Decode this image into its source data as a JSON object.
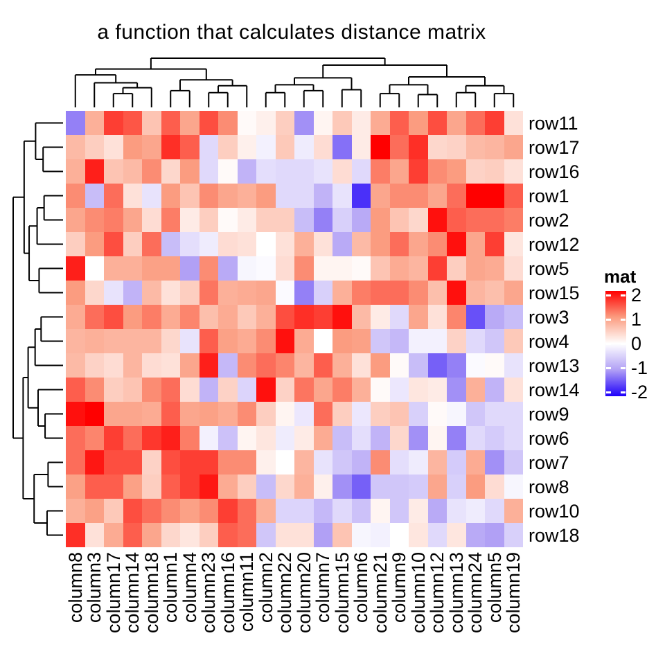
{
  "title": "a function that calculates distance matrix",
  "chart_data": {
    "type": "heatmap",
    "title": "a function that calculates distance matrix",
    "rows": [
      "row11",
      "row17",
      "row16",
      "row1",
      "row2",
      "row12",
      "row5",
      "row15",
      "row3",
      "row4",
      "row13",
      "row14",
      "row9",
      "row6",
      "row7",
      "row8",
      "row10",
      "row18"
    ],
    "columns": [
      "column8",
      "column3",
      "column17",
      "column14",
      "column18",
      "column1",
      "column4",
      "column23",
      "column16",
      "column11",
      "column2",
      "column22",
      "column20",
      "column7",
      "column15",
      "column6",
      "column21",
      "column9",
      "column10",
      "column12",
      "column13",
      "column24",
      "column5",
      "column19"
    ],
    "values": [
      [
        -1.2,
        0.8,
        1.6,
        1.45,
        0.6,
        1.4,
        0.9,
        1.5,
        1.1,
        0.05,
        0.15,
        0.5,
        -1.1,
        0.1,
        0.55,
        0.2,
        0.85,
        1.4,
        1.0,
        1.5,
        0.9,
        1.3,
        1.6,
        0.3
      ],
      [
        0.7,
        0.5,
        0.3,
        1.0,
        0.9,
        1.7,
        1.4,
        -0.4,
        0.5,
        0.15,
        -0.15,
        0.55,
        -0.2,
        0.35,
        -1.3,
        0.2,
        2.0,
        1.3,
        1.7,
        0.4,
        0.45,
        0.7,
        0.75,
        0.9
      ],
      [
        0.8,
        1.8,
        0.6,
        0.7,
        1.1,
        0.4,
        1.0,
        -0.4,
        0.05,
        -0.8,
        -0.35,
        -0.4,
        -0.4,
        -0.3,
        0.35,
        -0.4,
        1.2,
        0.9,
        1.6,
        1.1,
        1.0,
        0.45,
        0.5,
        0.3
      ],
      [
        1.1,
        -0.7,
        1.3,
        0.3,
        -0.3,
        1.0,
        0.6,
        1.1,
        0.9,
        0.8,
        1.0,
        -0.4,
        -0.4,
        -0.8,
        -0.3,
        -1.7,
        0.9,
        1.1,
        1.1,
        0.9,
        1.3,
        2.0,
        2.0,
        1.4
      ],
      [
        0.9,
        1.1,
        1.2,
        0.9,
        0.35,
        1.2,
        0.2,
        0.5,
        0.05,
        0.2,
        0.5,
        0.5,
        -0.7,
        -1.2,
        -0.5,
        -0.9,
        1.0,
        0.6,
        0.4,
        1.9,
        1.4,
        1.3,
        1.3,
        1.2
      ],
      [
        0.5,
        1.0,
        1.5,
        0.5,
        1.3,
        -0.7,
        -0.35,
        -0.2,
        0.35,
        0.3,
        0.0,
        0.3,
        0.8,
        0.3,
        -0.9,
        0.7,
        1.0,
        1.3,
        0.9,
        1.1,
        1.9,
        0.9,
        1.6,
        0.25
      ],
      [
        1.8,
        0.0,
        0.8,
        0.8,
        0.95,
        0.95,
        -1.0,
        1.1,
        -0.9,
        -0.1,
        -0.05,
        0.35,
        1.1,
        0.1,
        0.1,
        0.05,
        0.6,
        0.85,
        0.75,
        1.6,
        0.5,
        0.9,
        0.85,
        0.35
      ],
      [
        1.0,
        0.4,
        -0.3,
        -0.8,
        0.7,
        0.3,
        0.5,
        1.25,
        0.8,
        0.85,
        0.9,
        -0.05,
        -1.2,
        -0.5,
        0.8,
        1.2,
        1.3,
        1.3,
        1.1,
        0.65,
        1.9,
        0.75,
        0.65,
        0.9
      ],
      [
        0.85,
        1.3,
        1.5,
        1.0,
        1.2,
        0.85,
        1.15,
        0.65,
        0.85,
        0.55,
        0.8,
        1.5,
        1.7,
        1.6,
        1.9,
        0.7,
        0.2,
        -0.4,
        0.9,
        0.3,
        1.15,
        -1.5,
        -0.9,
        -0.7
      ],
      [
        0.75,
        0.8,
        0.75,
        0.75,
        0.75,
        0.4,
        -0.3,
        1.4,
        0.95,
        0.85,
        1.1,
        1.9,
        0.85,
        0.0,
        1.0,
        0.95,
        -0.6,
        -0.75,
        -0.15,
        -0.15,
        0.45,
        -0.4,
        -0.6,
        0.55
      ],
      [
        0.7,
        0.45,
        0.35,
        0.75,
        0.35,
        0.3,
        0.9,
        1.8,
        -0.75,
        1.1,
        1.3,
        1.15,
        0.75,
        1.4,
        0.8,
        0.3,
        1.0,
        0.05,
        -0.7,
        -1.4,
        -1.2,
        -0.05,
        0.05,
        -0.3
      ],
      [
        1.4,
        1.1,
        0.5,
        0.6,
        1.1,
        1.3,
        0.35,
        -0.8,
        0.45,
        -0.45,
        1.9,
        0.45,
        1.25,
        0.9,
        1.2,
        0.8,
        0.05,
        -0.25,
        0.25,
        0.2,
        -1.1,
        0.8,
        -0.8,
        0.3
      ],
      [
        1.9,
        2.0,
        0.9,
        0.9,
        0.85,
        1.4,
        0.9,
        0.95,
        0.85,
        1.1,
        0.5,
        0.1,
        -0.25,
        1.3,
        0.5,
        -0.25,
        0.5,
        0.6,
        -0.5,
        0.05,
        -0.1,
        -0.6,
        -0.4,
        -0.4
      ],
      [
        1.3,
        1.15,
        1.6,
        1.3,
        1.65,
        1.8,
        1.2,
        -0.15,
        -0.65,
        0.1,
        0.25,
        -0.2,
        0.2,
        0.85,
        -0.7,
        -0.35,
        -0.8,
        0.4,
        -1.1,
        0.1,
        -1.2,
        -0.4,
        -0.55,
        -0.4
      ],
      [
        1.3,
        1.85,
        1.5,
        1.5,
        0.45,
        1.5,
        1.6,
        1.6,
        1.1,
        1.1,
        0.15,
        0.0,
        0.75,
        -0.3,
        -0.6,
        -0.8,
        1.1,
        -0.35,
        -0.2,
        0.75,
        -0.55,
        0.85,
        -1.1,
        -0.6
      ],
      [
        0.95,
        1.4,
        1.4,
        0.95,
        0.5,
        1.4,
        1.6,
        1.85,
        0.85,
        0.5,
        -0.7,
        0.4,
        0.8,
        0.15,
        -1.1,
        -1.4,
        -0.6,
        -0.6,
        -0.55,
        0.9,
        -0.5,
        1.0,
        0.35,
        -0.1
      ],
      [
        0.8,
        0.95,
        0.55,
        1.5,
        1.3,
        1.1,
        0.95,
        1.1,
        1.6,
        1.3,
        0.8,
        -0.45,
        -0.45,
        -0.75,
        -0.4,
        -0.65,
        0.1,
        -0.6,
        0.2,
        -0.9,
        -0.3,
        -0.2,
        -0.4,
        0.8
      ],
      [
        1.7,
        0.3,
        0.85,
        1.4,
        0.9,
        0.4,
        0.25,
        0.5,
        1.4,
        1.3,
        -0.6,
        0.3,
        0.3,
        -1.0,
        0.6,
        -0.1,
        -0.15,
        0.0,
        0.25,
        -0.4,
        0.25,
        -0.9,
        -1.0,
        -0.5
      ]
    ],
    "color_scale": {
      "domain": [
        -2,
        -1,
        0,
        1,
        2
      ],
      "colors": [
        "#1E00FA",
        "#B1A0F5",
        "#FFFFFF",
        "#FB9C80",
        "#FF0000"
      ]
    },
    "legend": {
      "title": "mat",
      "ticks": [
        "2",
        "1",
        "0",
        "-1",
        "-2"
      ],
      "tick_values": [
        2,
        1,
        0,
        -1,
        -2
      ],
      "min": -2,
      "max": 2
    },
    "grid": false,
    "legend_position": "right",
    "row_dendrogram": {
      "h": 1,
      "c": [
        {
          "h": 0.78,
          "c": [
            {
              "h": 0.55,
              "c": [
                0,
                {
                  "h": 0.4,
                  "c": [
                    1,
                    2
                  ]
                }
              ]
            },
            {
              "h": 0.68,
              "c": [
                {
                  "h": 0.52,
                  "c": [
                    {
                      "h": 0.38,
                      "c": [
                        3,
                        4
                      ]
                    },
                    5
                  ]
                },
                {
                  "h": 0.48,
                  "c": [
                    6,
                    7
                  ]
                }
              ]
            }
          ]
        },
        {
          "h": 0.8,
          "c": [
            {
              "h": 0.7,
              "c": [
                {
                  "h": 0.56,
                  "c": [
                    {
                      "h": 0.44,
                      "c": [
                        8,
                        9
                      ]
                    },
                    10
                  ]
                },
                {
                  "h": 0.5,
                  "c": [
                    11,
                    {
                      "h": 0.36,
                      "c": [
                        12,
                        13
                      ]
                    }
                  ]
                }
              ]
            },
            {
              "h": 0.58,
              "c": [
                {
                  "h": 0.3,
                  "c": [
                    14,
                    15
                  ]
                },
                {
                  "h": 0.32,
                  "c": [
                    16,
                    17
                  ]
                }
              ]
            }
          ]
        }
      ]
    },
    "column_dendrogram": {
      "h": 1,
      "c": [
        {
          "h": 0.78,
          "c": [
            {
              "h": 0.66,
              "c": [
                0,
                {
                  "h": 0.5,
                  "c": [
                    1,
                    {
                      "h": 0.4,
                      "c": [
                        {
                          "h": 0.28,
                          "c": [
                            2,
                            3
                          ]
                        },
                        4
                      ]
                    }
                  ]
                }
              ]
            },
            {
              "h": 0.56,
              "c": [
                {
                  "h": 0.34,
                  "c": [
                    5,
                    6
                  ]
                },
                {
                  "h": 0.44,
                  "c": [
                    {
                      "h": 0.3,
                      "c": [
                        7,
                        8
                      ]
                    },
                    9
                  ]
                }
              ]
            }
          ]
        },
        {
          "h": 0.86,
          "c": [
            {
              "h": 0.6,
              "c": [
                {
                  "h": 0.46,
                  "c": [
                    {
                      "h": 0.3,
                      "c": [
                        10,
                        11
                      ]
                    },
                    {
                      "h": 0.34,
                      "c": [
                        12,
                        13
                      ]
                    }
                  ]
                },
                {
                  "h": 0.36,
                  "c": [
                    14,
                    15
                  ]
                }
              ]
            },
            {
              "h": 0.62,
              "c": [
                {
                  "h": 0.46,
                  "c": [
                    {
                      "h": 0.28,
                      "c": [
                        16,
                        17
                      ]
                    },
                    {
                      "h": 0.26,
                      "c": [
                        18,
                        19
                      ]
                    }
                  ]
                },
                {
                  "h": 0.44,
                  "c": [
                    {
                      "h": 0.3,
                      "c": [
                        20,
                        21
                      ]
                    },
                    {
                      "h": 0.28,
                      "c": [
                        22,
                        23
                      ]
                    }
                  ]
                }
              ]
            }
          ]
        }
      ]
    }
  }
}
